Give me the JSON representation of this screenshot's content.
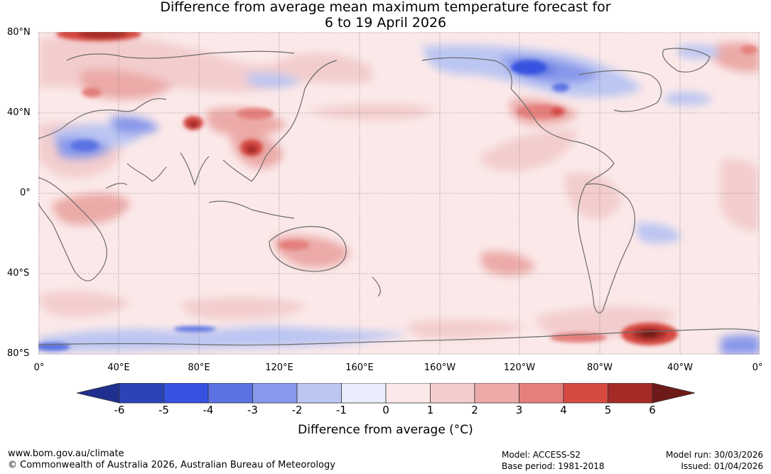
{
  "title": {
    "line1": "Difference from average mean maximum temperature forecast for",
    "line2": "6 to 19 April 2026"
  },
  "axes": {
    "lat_labels": [
      "80°N",
      "40°N",
      "0°",
      "40°S",
      "80°S"
    ],
    "lon_labels": [
      "0°",
      "40°E",
      "80°E",
      "120°E",
      "160°E",
      "160°W",
      "120°W",
      "80°W",
      "40°W",
      "0°"
    ]
  },
  "colorbar": {
    "ticks": [
      "-6",
      "-5",
      "-4",
      "-3",
      "-2",
      "-1",
      "0",
      "1",
      "2",
      "3",
      "4",
      "5",
      "6"
    ],
    "label": "Difference from average (°C)",
    "colors": [
      "#1f2f8f",
      "#2a44b8",
      "#3552e0",
      "#5a72e2",
      "#8898ea",
      "#bcc6f2",
      "#e9ecfb",
      "#fbe9e9",
      "#f3cdcd",
      "#ebaaa8",
      "#e47f7b",
      "#d64a42",
      "#a52a26",
      "#6e1a18"
    ]
  },
  "legend_scale": {
    "extend_low": "#1f2f8f",
    "extend_high": "#6e1a18"
  },
  "footer": {
    "website": "www.bom.gov.au/climate",
    "copyright": "© Commonwealth of Australia 2026, Australian Bureau of Meteorology",
    "model": "Model: ACCESS-S2",
    "base_period": "Base period: 1981-2018",
    "model_run": "Model run: 30/03/2026",
    "issued": "Issued: 01/04/2026"
  }
}
